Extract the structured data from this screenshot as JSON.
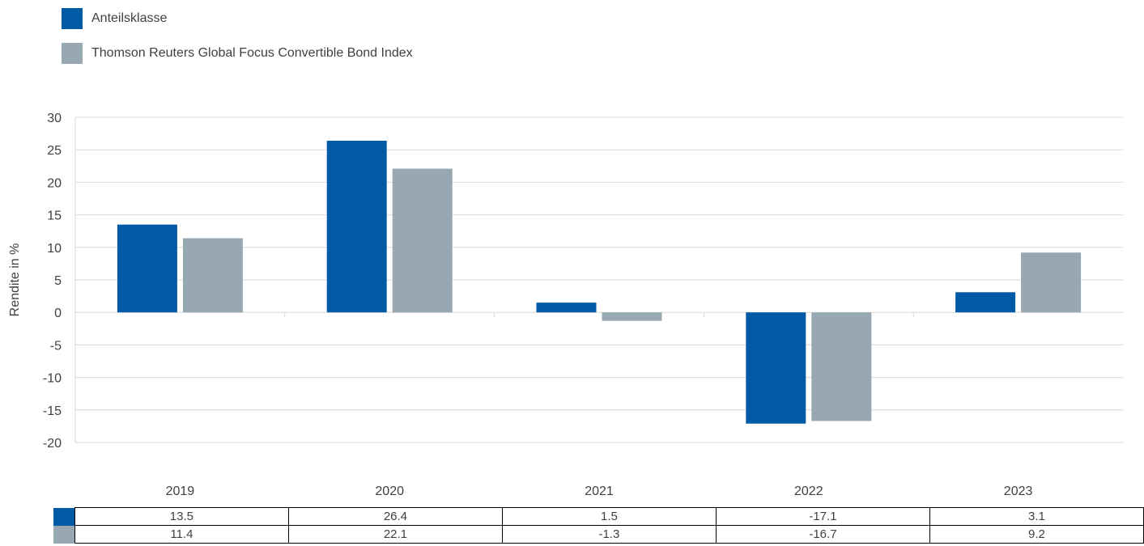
{
  "chart_data": {
    "type": "bar",
    "categories": [
      "2019",
      "2020",
      "2021",
      "2022",
      "2023"
    ],
    "series": [
      {
        "name": "Anteilsklasse",
        "color": "#005AA5",
        "values": [
          13.5,
          26.4,
          1.5,
          -17.1,
          3.1
        ]
      },
      {
        "name": "Thomson Reuters Global Focus Convertible Bond Index",
        "color": "#97A8B3",
        "values": [
          11.4,
          22.1,
          -1.3,
          -16.7,
          9.2
        ]
      }
    ],
    "title": "",
    "xlabel": "",
    "ylabel": "Rendite in %",
    "ylim": [
      -20,
      30
    ],
    "yticks": [
      30,
      25,
      20,
      15,
      10,
      5,
      0,
      -5,
      -10,
      -15,
      -20
    ],
    "grid": true,
    "legend": "top-left"
  },
  "table": {
    "rows": [
      [
        "13.5",
        "26.4",
        "1.5",
        "-17.1",
        "3.1"
      ],
      [
        "11.4",
        "22.1",
        "-1.3",
        "-16.7",
        "9.2"
      ]
    ]
  }
}
